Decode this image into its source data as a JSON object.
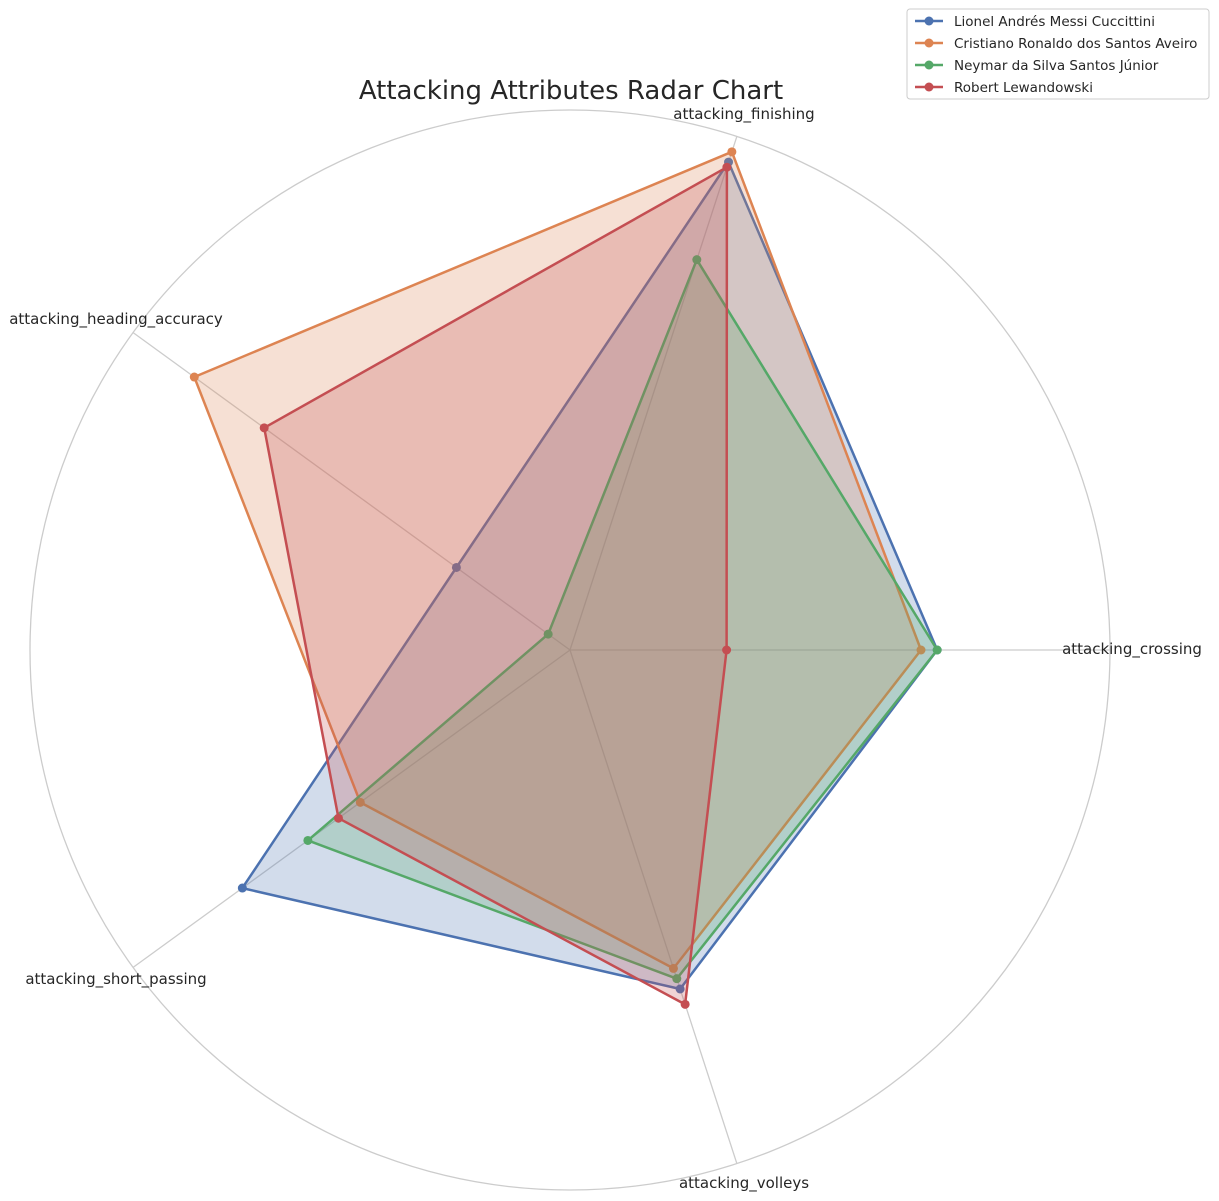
{
  "chart_data": {
    "type": "radar",
    "title": "Attacking Attributes Radar Chart",
    "axes": [
      "attacking_crossing",
      "attacking_finishing",
      "attacking_heading_accuracy",
      "attacking_short_passing",
      "attacking_volleys"
    ],
    "rlim": [
      0,
      100
    ],
    "grid": true,
    "legend_position": "top-right",
    "series": [
      {
        "name": "Lionel Andrés Messi Cuccittini",
        "color": "#4c72b0",
        "values": [
          68,
          95,
          26,
          75,
          66
        ]
      },
      {
        "name": "Cristiano Ronaldo dos Santos Aveiro",
        "color": "#dd8452",
        "values": [
          65,
          97,
          86,
          48,
          62
        ]
      },
      {
        "name": "Neymar da Silva Santos Júnior",
        "color": "#55a868",
        "values": [
          68,
          76,
          5,
          60,
          64
        ]
      },
      {
        "name": "Robert Lewandowski",
        "color": "#c44e52",
        "values": [
          29,
          94,
          70,
          53,
          69
        ]
      }
    ]
  }
}
